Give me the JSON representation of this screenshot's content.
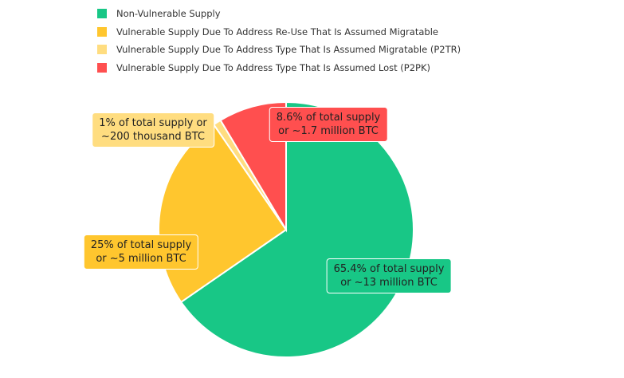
{
  "chart_data": {
    "type": "pie",
    "start_angle": "top",
    "direction": "clockwise",
    "legend_position": "top",
    "slices": [
      {
        "name": "Non-Vulnerable Supply",
        "value": 65.4,
        "color": "#18c786",
        "label_line1": "65.4% of total supply",
        "label_line2": "or ~13 million BTC"
      },
      {
        "name": "Vulnerable Supply Due To Address Re-Use That Is Assumed Migratable",
        "value": 25,
        "color": "#ffc62e",
        "label_line1": "25% of total supply",
        "label_line2": "or ~5 million BTC"
      },
      {
        "name": "Vulnerable Supply Due To Address Type That Is Assumed Migratable (P2TR)",
        "value": 1,
        "color": "#ffdd80",
        "label_line1": "1% of total supply or",
        "label_line2": "~200 thousand BTC"
      },
      {
        "name": "Vulnerable Supply Due To Address Type That Is Assumed Lost (P2PK)",
        "value": 8.6,
        "color": "#ff4f4f",
        "label_line1": "8.6% of total supply",
        "label_line2": "or ~1.7 million BTC"
      }
    ]
  }
}
